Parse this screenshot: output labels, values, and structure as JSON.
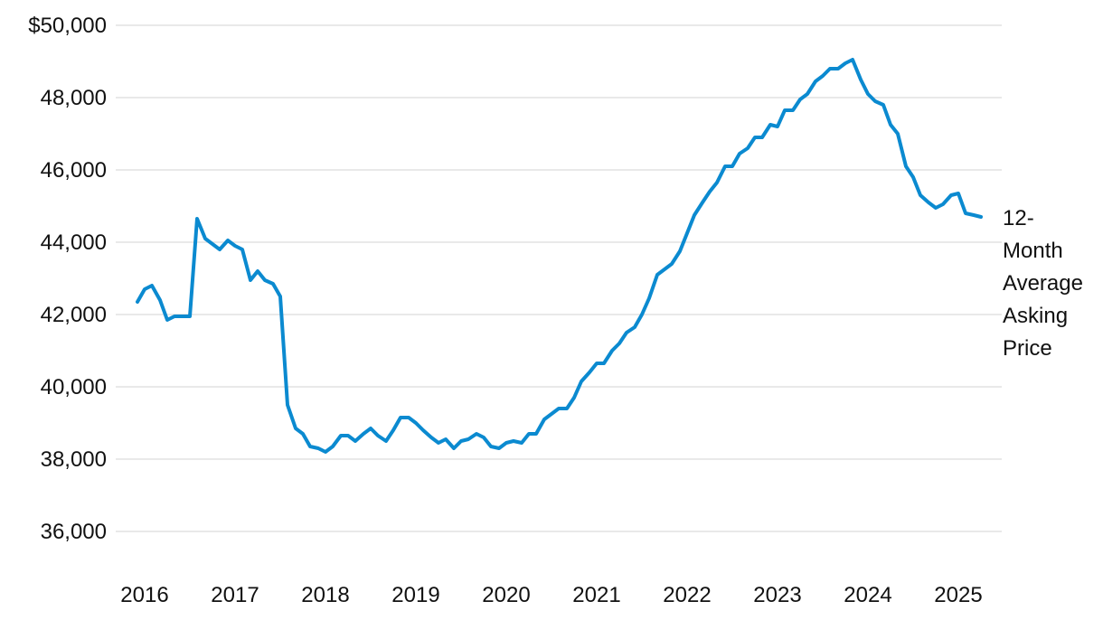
{
  "chart_data": {
    "type": "line",
    "title": "",
    "xlabel": "",
    "ylabel": "",
    "ylim": [
      35000,
      50500
    ],
    "xlim": [
      2015.8,
      2025.45
    ],
    "y_ticks": [
      {
        "value": 50000,
        "label": "$50,000"
      },
      {
        "value": 48000,
        "label": "48,000"
      },
      {
        "value": 46000,
        "label": "46,000"
      },
      {
        "value": 44000,
        "label": "44,000"
      },
      {
        "value": 42000,
        "label": "42,000"
      },
      {
        "value": 40000,
        "label": "40,000"
      },
      {
        "value": 38000,
        "label": "38,000"
      },
      {
        "value": 36000,
        "label": "36,000"
      }
    ],
    "x_ticks": [
      {
        "value": 2016,
        "label": "2016"
      },
      {
        "value": 2017,
        "label": "2017"
      },
      {
        "value": 2018,
        "label": "2018"
      },
      {
        "value": 2019,
        "label": "2019"
      },
      {
        "value": 2020,
        "label": "2020"
      },
      {
        "value": 2021,
        "label": "2021"
      },
      {
        "value": 2022,
        "label": "2022"
      },
      {
        "value": 2023,
        "label": "2023"
      },
      {
        "value": 2024,
        "label": "2024"
      },
      {
        "value": 2025,
        "label": "2025"
      }
    ],
    "grid": true,
    "series": [
      {
        "name": "12-Month Average Asking Price",
        "label_lines": [
          "12-",
          "Month",
          "Average",
          "Asking",
          "Price"
        ],
        "color": "#0b8ad0",
        "x": [
          2015.92,
          2016.0,
          2016.08,
          2016.17,
          2016.25,
          2016.33,
          2016.42,
          2016.5,
          2016.58,
          2016.67,
          2016.75,
          2016.83,
          2016.92,
          2017.0,
          2017.08,
          2017.17,
          2017.25,
          2017.33,
          2017.42,
          2017.5,
          2017.58,
          2017.67,
          2017.75,
          2017.83,
          2017.92,
          2018.0,
          2018.08,
          2018.17,
          2018.25,
          2018.33,
          2018.42,
          2018.5,
          2018.58,
          2018.67,
          2018.75,
          2018.83,
          2018.92,
          2019.0,
          2019.08,
          2019.17,
          2019.25,
          2019.33,
          2019.42,
          2019.5,
          2019.58,
          2019.67,
          2019.75,
          2019.83,
          2019.92,
          2020.0,
          2020.08,
          2020.17,
          2020.25,
          2020.33,
          2020.42,
          2020.5,
          2020.58,
          2020.67,
          2020.75,
          2020.83,
          2020.92,
          2021.0,
          2021.08,
          2021.17,
          2021.25,
          2021.33,
          2021.42,
          2021.5,
          2021.58,
          2021.67,
          2021.75,
          2021.83,
          2021.92,
          2022.0,
          2022.08,
          2022.17,
          2022.25,
          2022.33,
          2022.42,
          2022.5,
          2022.58,
          2022.67,
          2022.75,
          2022.83,
          2022.92,
          2023.0,
          2023.08,
          2023.17,
          2023.25,
          2023.33,
          2023.42,
          2023.5,
          2023.58,
          2023.67,
          2023.75,
          2023.83,
          2023.92,
          2024.0,
          2024.08,
          2024.17,
          2024.25,
          2024.33,
          2024.42,
          2024.5,
          2024.58,
          2024.67,
          2024.75,
          2024.83,
          2024.92,
          2025.0,
          2025.08,
          2025.17,
          2025.25
        ],
        "values": [
          42350,
          42700,
          42800,
          42400,
          41850,
          41950,
          41950,
          41950,
          44650,
          44100,
          43950,
          43800,
          44050,
          43900,
          43800,
          42950,
          43200,
          42950,
          42850,
          42500,
          39500,
          38850,
          38700,
          38350,
          38300,
          38200,
          38350,
          38650,
          38650,
          38500,
          38700,
          38850,
          38650,
          38500,
          38800,
          39150,
          39150,
          39000,
          38800,
          38600,
          38450,
          38550,
          38300,
          38500,
          38550,
          38700,
          38600,
          38350,
          38300,
          38450,
          38500,
          38450,
          38700,
          38700,
          39100,
          39250,
          39400,
          39400,
          39700,
          40150,
          40400,
          40650,
          40650,
          41000,
          41200,
          41500,
          41650,
          42000,
          42450,
          43100,
          43250,
          43400,
          43750,
          44250,
          44750,
          45100,
          45400,
          45650,
          46100,
          46100,
          46450,
          46600,
          46900,
          46900,
          47250,
          47200,
          47650,
          47650,
          47950,
          48100,
          48450,
          48600,
          48800,
          48800,
          48950,
          49050,
          48500,
          48100,
          47900,
          47800,
          47250,
          47000,
          46100,
          45800,
          45300,
          45100,
          44950,
          45050,
          45300,
          45350,
          44800,
          44750,
          44700
        ]
      }
    ]
  }
}
